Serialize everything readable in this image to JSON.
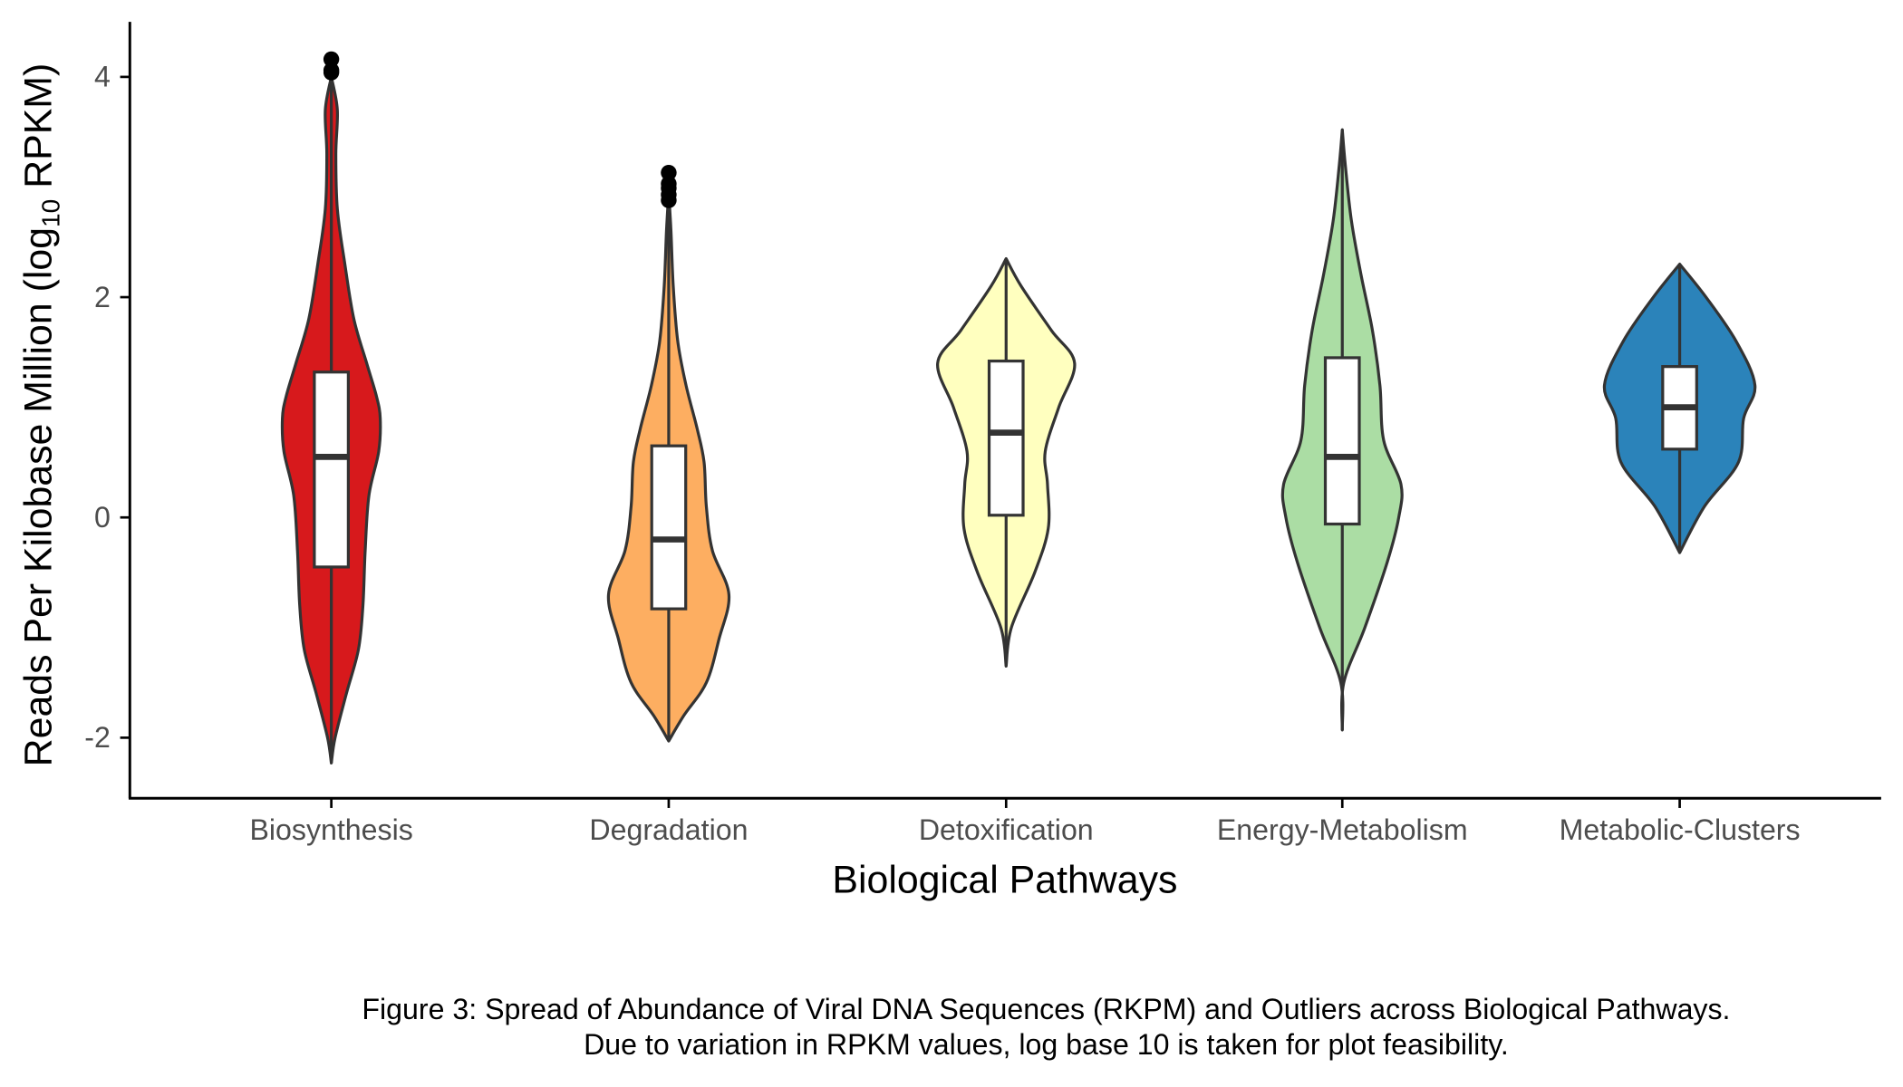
{
  "chart_data": {
    "type": "violin",
    "xlabel": "Biological Pathways",
    "ylabel": {
      "prefix": "Reads Per Kilobase Million (log",
      "subscript": "10",
      "suffix": " RPKM)"
    },
    "ylim": [
      -2.55,
      4.5
    ],
    "yticks": [
      -2,
      0,
      2,
      4
    ],
    "ytick_labels": [
      "-2",
      "0",
      "2",
      "4"
    ],
    "grid": false,
    "legend": "none",
    "caption": [
      "Figure 3: Spread of Abundance of Viral DNA Sequences (RKPM) and Outliers across Biological Pathways.",
      "Due to variation in RPKM values, log base 10 is taken for plot feasibility."
    ],
    "categories": [
      "Biosynthesis",
      "Degradation",
      "Detoxification",
      "Energy-Metabolism",
      "Metabolic-Clusters"
    ],
    "series": [
      {
        "category": "Biosynthesis",
        "color": "#d7191c",
        "box": {
          "lower_whisker": -2.23,
          "q1": -0.45,
          "median": 0.55,
          "q3": 1.32,
          "upper_whisker": 4.0
        },
        "outliers": [
          4.04,
          4.06,
          4.16
        ],
        "density": [
          [
            -2.23,
            0
          ],
          [
            -2.0,
            0.05
          ],
          [
            -1.6,
            0.2
          ],
          [
            -1.2,
            0.36
          ],
          [
            -0.8,
            0.42
          ],
          [
            -0.3,
            0.45
          ],
          [
            0.2,
            0.5
          ],
          [
            0.6,
            0.63
          ],
          [
            0.9,
            0.65
          ],
          [
            1.1,
            0.6
          ],
          [
            1.4,
            0.47
          ],
          [
            1.8,
            0.3
          ],
          [
            2.3,
            0.18
          ],
          [
            2.8,
            0.08
          ],
          [
            3.3,
            0.06
          ],
          [
            3.7,
            0.08
          ],
          [
            4.0,
            0
          ]
        ]
      },
      {
        "category": "Degradation",
        "color": "#fdae61",
        "box": {
          "lower_whisker": -2.03,
          "q1": -0.83,
          "median": -0.2,
          "q3": 0.65,
          "upper_whisker": 2.95
        },
        "outliers": [
          2.88,
          2.93,
          2.99,
          3.03,
          3.13
        ],
        "density": [
          [
            -2.03,
            0
          ],
          [
            -1.8,
            0.2
          ],
          [
            -1.5,
            0.5
          ],
          [
            -1.1,
            0.67
          ],
          [
            -0.7,
            0.8
          ],
          [
            -0.3,
            0.58
          ],
          [
            0.1,
            0.5
          ],
          [
            0.5,
            0.47
          ],
          [
            0.8,
            0.38
          ],
          [
            1.2,
            0.23
          ],
          [
            1.6,
            0.12
          ],
          [
            2.1,
            0.06
          ],
          [
            2.6,
            0.03
          ],
          [
            2.95,
            0
          ]
        ]
      },
      {
        "category": "Detoxification",
        "color": "#ffffbf",
        "box": {
          "lower_whisker": -1.35,
          "q1": 0.02,
          "median": 0.77,
          "q3": 1.42,
          "upper_whisker": 2.35
        },
        "outliers": [],
        "density": [
          [
            -1.35,
            0
          ],
          [
            -1.0,
            0.07
          ],
          [
            -0.5,
            0.38
          ],
          [
            -0.1,
            0.56
          ],
          [
            0.3,
            0.55
          ],
          [
            0.6,
            0.52
          ],
          [
            1.0,
            0.7
          ],
          [
            1.4,
            0.91
          ],
          [
            1.7,
            0.6
          ],
          [
            2.1,
            0.2
          ],
          [
            2.35,
            0
          ]
        ]
      },
      {
        "category": "Energy-Metabolism",
        "color": "#abdda4",
        "box": {
          "lower_whisker": -1.93,
          "q1": -0.06,
          "median": 0.55,
          "q3": 1.45,
          "upper_whisker": 3.52
        },
        "outliers": [],
        "density": [
          [
            -1.93,
            0
          ],
          [
            -1.5,
            0.02
          ],
          [
            -1.0,
            0.3
          ],
          [
            -0.4,
            0.6
          ],
          [
            0.0,
            0.75
          ],
          [
            0.3,
            0.78
          ],
          [
            0.7,
            0.55
          ],
          [
            1.2,
            0.5
          ],
          [
            1.7,
            0.4
          ],
          [
            2.2,
            0.25
          ],
          [
            2.7,
            0.12
          ],
          [
            3.2,
            0.04
          ],
          [
            3.52,
            0
          ]
        ]
      },
      {
        "category": "Metabolic-Clusters",
        "color": "#2b83ba",
        "box": {
          "lower_whisker": -0.32,
          "q1": 0.62,
          "median": 1.0,
          "q3": 1.37,
          "upper_whisker": 2.3
        },
        "outliers": [],
        "density": [
          [
            -0.32,
            0
          ],
          [
            0.1,
            0.33
          ],
          [
            0.5,
            0.78
          ],
          [
            0.9,
            0.85
          ],
          [
            1.2,
            1.0
          ],
          [
            1.6,
            0.75
          ],
          [
            2.0,
            0.35
          ],
          [
            2.3,
            0
          ]
        ]
      }
    ]
  }
}
